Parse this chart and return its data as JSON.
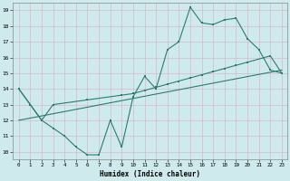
{
  "xlabel": "Humidex (Indice chaleur)",
  "xlim": [
    -0.5,
    23.5
  ],
  "ylim": [
    9.5,
    19.5
  ],
  "yticks": [
    10,
    11,
    12,
    13,
    14,
    15,
    16,
    17,
    18,
    19
  ],
  "xticks": [
    0,
    1,
    2,
    3,
    4,
    5,
    6,
    7,
    8,
    9,
    10,
    11,
    12,
    13,
    14,
    15,
    16,
    17,
    18,
    19,
    20,
    21,
    22,
    23
  ],
  "line_color": "#2a7d6e",
  "bg_color": "#ceeaed",
  "grid_color": "#b8d8db",
  "line1_x": [
    0,
    1,
    2,
    3,
    4,
    5,
    6,
    7,
    8,
    9,
    10,
    11,
    12,
    13,
    14,
    15,
    16,
    17,
    18,
    19,
    20,
    21,
    22,
    23
  ],
  "line1_y": [
    14.0,
    13.0,
    12.0,
    11.5,
    11.0,
    10.3,
    9.8,
    9.8,
    12.0,
    10.3,
    13.5,
    14.8,
    14.0,
    16.5,
    17.0,
    19.2,
    18.2,
    18.1,
    18.4,
    18.5,
    17.2,
    16.5,
    15.2,
    15.0
  ],
  "line2_x": [
    0,
    2,
    3,
    6,
    9,
    10,
    11,
    12,
    13,
    14,
    15,
    16,
    17,
    18,
    19,
    20,
    22,
    23
  ],
  "line2_y": [
    14.0,
    12.0,
    13.0,
    13.3,
    13.6,
    13.7,
    13.9,
    14.1,
    14.3,
    14.5,
    14.7,
    14.9,
    15.1,
    15.3,
    15.5,
    15.7,
    16.1,
    15.0
  ],
  "line3_x": [
    0,
    23
  ],
  "line3_y": [
    12.0,
    15.2
  ]
}
